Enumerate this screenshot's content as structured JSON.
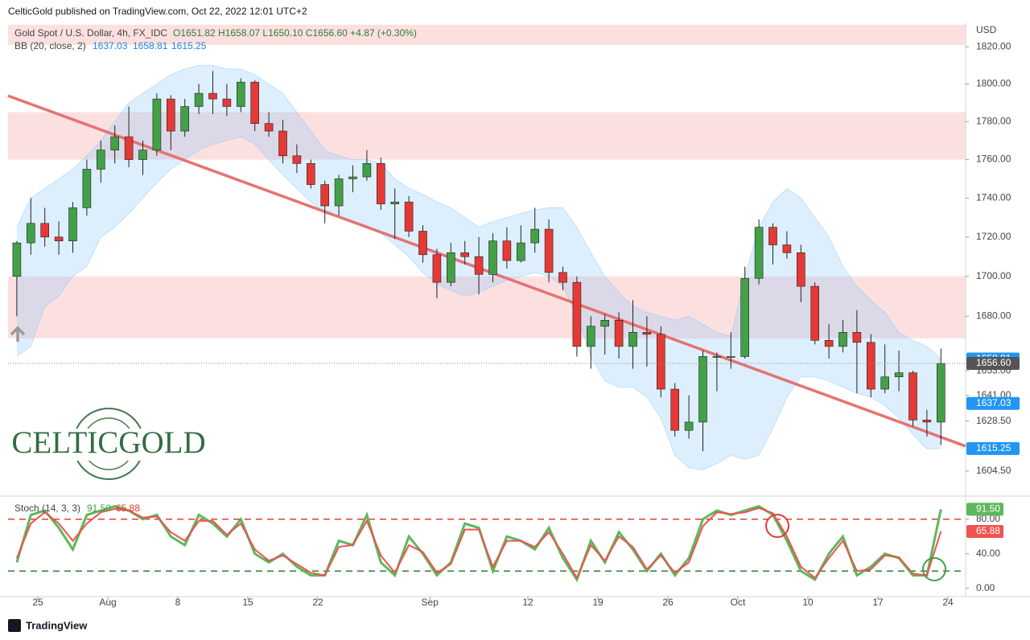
{
  "header": {
    "publisher": "CelticGold published on TradingView.com, Oct 22, 2022 12:01 UTC+2",
    "footer": "TradingView",
    "logo": "CELTICGOLD",
    "currency": "USD"
  },
  "chart_data": [
    {
      "type": "candlestick",
      "log_scale": true,
      "legend": {
        "symbol": "Gold Spot / U.S. Dollar, 4h, FX_IDC",
        "ohlc": "O1651.82 H1658.07 L1650.10 C1656.60 +4.87 (+0.30%)",
        "bb_name": "BB (20, close, 2)",
        "bb_basis": 1637.03,
        "bb_upper": 1658.81,
        "bb_lower": 1615.25,
        "last_label": "1656.60"
      },
      "categories": [
        "07-21",
        "07-22",
        "07-25",
        "07-26",
        "07-27",
        "07-28",
        "07-29",
        "08-01",
        "08-02",
        "08-03",
        "08-04",
        "08-05",
        "08-08",
        "08-09",
        "08-10",
        "08-11",
        "08-12",
        "08-15",
        "08-16",
        "08-17",
        "08-18",
        "08-19",
        "08-22",
        "08-23",
        "08-24",
        "08-25",
        "08-26",
        "08-29",
        "08-30",
        "08-31",
        "09-01",
        "09-02",
        "09-05",
        "09-06",
        "09-07",
        "09-08",
        "09-09",
        "09-12",
        "09-13",
        "09-14",
        "09-15",
        "09-16",
        "09-19",
        "09-20",
        "09-21",
        "09-22",
        "09-23",
        "09-26",
        "09-27",
        "09-28",
        "09-29",
        "09-30",
        "10-03",
        "10-04",
        "10-05",
        "10-06",
        "10-07",
        "10-10",
        "10-11",
        "10-12",
        "10-13",
        "10-14",
        "10-17",
        "10-18",
        "10-19",
        "10-20",
        "10-21"
      ],
      "series": [
        {
          "name": "Gold Spot / U.S. Dollar",
          "up_color": "#43a047",
          "down_color": "#e53935",
          "open": [
            1700,
            1717,
            1727,
            1720,
            1718,
            1735,
            1755,
            1765,
            1772,
            1760,
            1765,
            1792,
            1775,
            1788,
            1795,
            1792,
            1788,
            1801,
            1779,
            1775,
            1762,
            1758,
            1747,
            1736,
            1750,
            1751,
            1758,
            1737,
            1738,
            1723,
            1711,
            1697,
            1712,
            1710,
            1701,
            1718,
            1708,
            1717,
            1724,
            1702,
            1697,
            1665,
            1675,
            1678,
            1665,
            1672,
            1671,
            1644,
            1624,
            1628,
            1660,
            1660,
            1660,
            1699,
            1725,
            1716,
            1712,
            1695,
            1668,
            1665,
            1672,
            1667,
            1644,
            1650,
            1652,
            1629,
            1628
          ],
          "high": [
            1718,
            1740,
            1735,
            1728,
            1738,
            1760,
            1770,
            1778,
            1788,
            1770,
            1795,
            1794,
            1792,
            1800,
            1807,
            1800,
            1803,
            1802,
            1785,
            1781,
            1768,
            1760,
            1749,
            1752,
            1757,
            1765,
            1761,
            1745,
            1741,
            1726,
            1714,
            1717,
            1718,
            1720,
            1722,
            1725,
            1726,
            1735,
            1729,
            1705,
            1700,
            1680,
            1681,
            1682,
            1688,
            1680,
            1675,
            1647,
            1641,
            1663,
            1662,
            1672,
            1705,
            1729,
            1727,
            1723,
            1716,
            1697,
            1676,
            1678,
            1683,
            1671,
            1666,
            1663,
            1653,
            1634,
            1664
          ],
          "low": [
            1680,
            1711,
            1715,
            1711,
            1712,
            1731,
            1748,
            1758,
            1756,
            1752,
            1762,
            1765,
            1772,
            1784,
            1784,
            1783,
            1785,
            1775,
            1772,
            1758,
            1753,
            1745,
            1727,
            1731,
            1743,
            1749,
            1734,
            1719,
            1720,
            1707,
            1689,
            1695,
            1706,
            1691,
            1697,
            1704,
            1707,
            1712,
            1697,
            1693,
            1660,
            1654,
            1661,
            1659,
            1654,
            1655,
            1640,
            1621,
            1620,
            1614,
            1643,
            1654,
            1659,
            1696,
            1706,
            1709,
            1687,
            1666,
            1659,
            1662,
            1642,
            1640,
            1642,
            1643,
            1626,
            1621,
            1617
          ],
          "close": [
            1717,
            1727,
            1720,
            1718,
            1735,
            1755,
            1765,
            1772,
            1760,
            1765,
            1792,
            1775,
            1788,
            1795,
            1792,
            1788,
            1801,
            1779,
            1775,
            1762,
            1758,
            1747,
            1736,
            1750,
            1751,
            1758,
            1737,
            1738,
            1723,
            1711,
            1697,
            1712,
            1710,
            1701,
            1718,
            1708,
            1717,
            1724,
            1702,
            1697,
            1665,
            1675,
            1678,
            1665,
            1672,
            1671,
            1644,
            1624,
            1628,
            1660,
            1660,
            1660,
            1699,
            1725,
            1716,
            1712,
            1695,
            1668,
            1665,
            1672,
            1667,
            1644,
            1650,
            1652,
            1629,
            1628,
            1656.6
          ]
        }
      ],
      "bollinger": {
        "color": "#90caf9",
        "upper": [
          1725,
          1740,
          1745,
          1750,
          1755,
          1762,
          1770,
          1780,
          1790,
          1795,
          1800,
          1805,
          1808,
          1810,
          1810,
          1808,
          1808,
          1805,
          1800,
          1795,
          1785,
          1775,
          1765,
          1762,
          1760,
          1760,
          1758,
          1750,
          1745,
          1742,
          1738,
          1735,
          1730,
          1725,
          1728,
          1730,
          1732,
          1734,
          1735,
          1735,
          1725,
          1712,
          1700,
          1692,
          1685,
          1682,
          1680,
          1678,
          1680,
          1676,
          1672,
          1670,
          1700,
          1725,
          1738,
          1745,
          1740,
          1730,
          1720,
          1705,
          1695,
          1688,
          1682,
          1672,
          1668,
          1665,
          1658.81
        ],
        "lower": [
          1660,
          1665,
          1685,
          1690,
          1700,
          1705,
          1720,
          1725,
          1732,
          1740,
          1748,
          1755,
          1760,
          1765,
          1768,
          1770,
          1772,
          1768,
          1760,
          1752,
          1745,
          1738,
          1732,
          1730,
          1728,
          1726,
          1722,
          1716,
          1710,
          1702,
          1696,
          1693,
          1690,
          1692,
          1695,
          1698,
          1700,
          1702,
          1700,
          1695,
          1680,
          1660,
          1648,
          1645,
          1645,
          1640,
          1630,
          1612,
          1606,
          1605,
          1608,
          1612,
          1610,
          1612,
          1625,
          1640,
          1650,
          1650,
          1648,
          1645,
          1642,
          1640,
          1636,
          1630,
          1622,
          1615,
          1615.25
        ]
      },
      "zones": [
        {
          "from": 1821,
          "to": 1832
        },
        {
          "from": 1760,
          "to": 1785
        },
        {
          "from": 1669,
          "to": 1700
        }
      ],
      "trendline": {
        "color": "#e57373",
        "x": [
          "07-21",
          "10-24"
        ],
        "values": [
          1792,
          1619.5
        ]
      },
      "ylim": [
        1594.5,
        1832.3
      ],
      "yticks": [
        {
          "value": 1820,
          "label": "1820.00"
        },
        {
          "value": 1800,
          "label": "1800.00"
        },
        {
          "value": 1780,
          "label": "1780.00"
        },
        {
          "value": 1760,
          "label": "1760.00"
        },
        {
          "value": 1740,
          "label": "1740.00"
        },
        {
          "value": 1720,
          "label": "1720.00"
        },
        {
          "value": 1700,
          "label": "1700.00"
        },
        {
          "value": 1680,
          "label": "1680.00"
        },
        {
          "value": 1653,
          "label": "1653.00"
        },
        {
          "value": 1641,
          "label": "1641.00"
        },
        {
          "value": 1628.5,
          "label": "1628.50"
        },
        {
          "value": 1604.5,
          "label": "1604.50"
        }
      ],
      "xticks": [
        {
          "value": "07-25",
          "label": "25"
        },
        {
          "value": "08-01",
          "label": "Aug"
        },
        {
          "value": "08-08",
          "label": "8"
        },
        {
          "value": "08-15",
          "label": "15"
        },
        {
          "value": "08-22",
          "label": "22"
        },
        {
          "value": "09-01",
          "label": "Sep"
        },
        {
          "value": "09-12",
          "label": "12"
        },
        {
          "value": "09-19",
          "label": "19"
        },
        {
          "value": "09-26",
          "label": "26"
        },
        {
          "value": "10-03",
          "label": "Oct"
        },
        {
          "value": "10-10",
          "label": "10"
        },
        {
          "value": "10-17",
          "label": "17"
        },
        {
          "value": "10-24",
          "label": "24"
        }
      ]
    },
    {
      "type": "line",
      "title": "Stoch (14, 3, 3)",
      "series": [
        {
          "name": "%K",
          "color": "#5cb85c",
          "last_label": "91.50",
          "values": [
            30,
            85,
            90,
            70,
            45,
            85,
            90,
            95,
            90,
            80,
            85,
            60,
            50,
            85,
            75,
            60,
            80,
            40,
            30,
            40,
            25,
            15,
            15,
            55,
            50,
            85,
            30,
            15,
            60,
            40,
            15,
            30,
            75,
            70,
            20,
            60,
            55,
            45,
            70,
            35,
            10,
            55,
            30,
            65,
            45,
            20,
            40,
            15,
            35,
            80,
            90,
            85,
            90,
            95,
            85,
            55,
            20,
            10,
            40,
            60,
            15,
            25,
            40,
            35,
            15,
            15,
            91.5
          ]
        },
        {
          "name": "%D",
          "color": "#ef5350",
          "last_label": "65.88",
          "values": [
            35,
            75,
            88,
            75,
            55,
            75,
            88,
            92,
            90,
            82,
            83,
            65,
            55,
            78,
            78,
            62,
            75,
            45,
            32,
            38,
            28,
            18,
            15,
            48,
            50,
            78,
            38,
            18,
            50,
            42,
            18,
            28,
            68,
            68,
            25,
            55,
            55,
            48,
            65,
            40,
            12,
            50,
            32,
            60,
            48,
            22,
            38,
            18,
            30,
            72,
            88,
            86,
            88,
            93,
            87,
            60,
            25,
            12,
            35,
            55,
            20,
            22,
            38,
            36,
            17,
            15,
            65.88
          ]
        }
      ],
      "bands": [
        {
          "value": 80,
          "color": "#e53935"
        },
        {
          "value": 20,
          "color": "#2e7d32"
        }
      ],
      "ylim": [
        -9.6,
        104
      ],
      "yticks": [
        {
          "value": 0,
          "label": "0.00"
        },
        {
          "value": 40,
          "label": "40.00"
        },
        {
          "value": 80,
          "label": "80.00"
        }
      ]
    }
  ]
}
